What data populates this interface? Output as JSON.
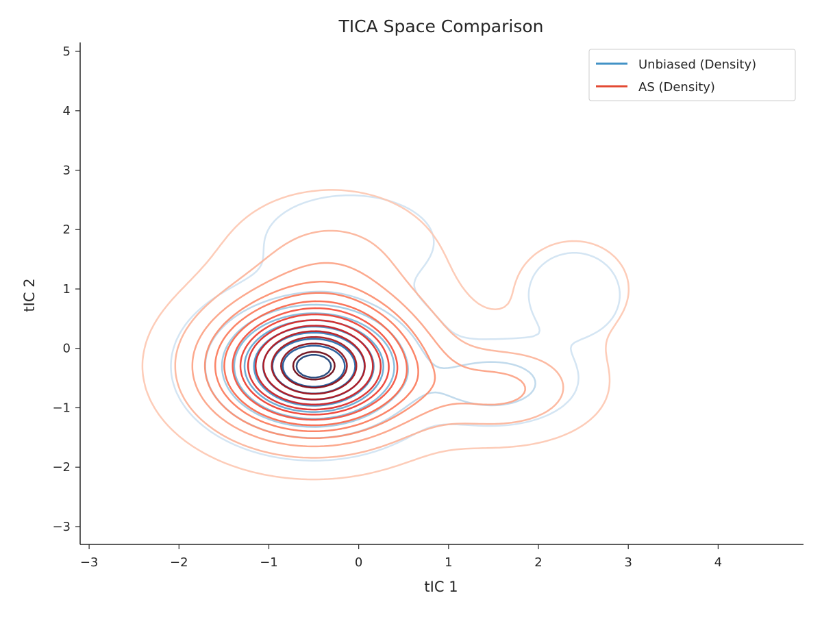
{
  "chart_data": {
    "type": "contour",
    "title": "TICA Space Comparison",
    "xlabel": "tIC 1",
    "ylabel": "tIC 2",
    "xlim": [
      -3.1,
      4.95
    ],
    "ylim": [
      -3.3,
      5.15
    ],
    "xticks": [
      -3,
      -2,
      -1,
      0,
      1,
      2,
      3,
      4
    ],
    "yticks": [
      -3,
      -2,
      -1,
      0,
      1,
      2,
      3,
      4,
      5
    ],
    "xtick_labels": [
      "−3",
      "−2",
      "−1",
      "0",
      "1",
      "2",
      "3",
      "4"
    ],
    "ytick_labels": [
      "−3",
      "−2",
      "−1",
      "0",
      "1",
      "2",
      "3",
      "4",
      "5"
    ],
    "grid": false,
    "legend_position": "top-right",
    "series": [
      {
        "name": "Unbiased (Density)",
        "legend_color": "#4292c6",
        "colormap": "Blues",
        "contour_levels": 10,
        "components": [
          {
            "center": [
              -0.5,
              -0.3
            ],
            "sigma": [
              0.6,
              0.6
            ],
            "weight": 1.0
          },
          {
            "center": [
              1.5,
              -0.6
            ],
            "sigma": [
              0.45,
              0.35
            ],
            "weight": 0.22
          },
          {
            "center": [
              -0.1,
              1.8
            ],
            "sigma": [
              0.6,
              0.5
            ],
            "weight": 0.1
          },
          {
            "center": [
              2.4,
              0.9
            ],
            "sigma": [
              0.5,
              0.7
            ],
            "weight": 0.05
          }
        ]
      },
      {
        "name": "AS (Density)",
        "legend_color": "#e34a33",
        "colormap": "Reds",
        "contour_levels": 14,
        "components": [
          {
            "center": [
              -0.5,
              -0.3
            ],
            "sigma": [
              0.72,
              0.72
            ],
            "weight": 1.0
          },
          {
            "center": [
              1.6,
              -0.7
            ],
            "sigma": [
              0.6,
              0.5
            ],
            "weight": 0.18
          },
          {
            "center": [
              -0.3,
              1.5
            ],
            "sigma": [
              0.7,
              0.7
            ],
            "weight": 0.12
          },
          {
            "center": [
              2.4,
              1.0
            ],
            "sigma": [
              0.6,
              0.8
            ],
            "weight": 0.05
          }
        ]
      }
    ]
  }
}
